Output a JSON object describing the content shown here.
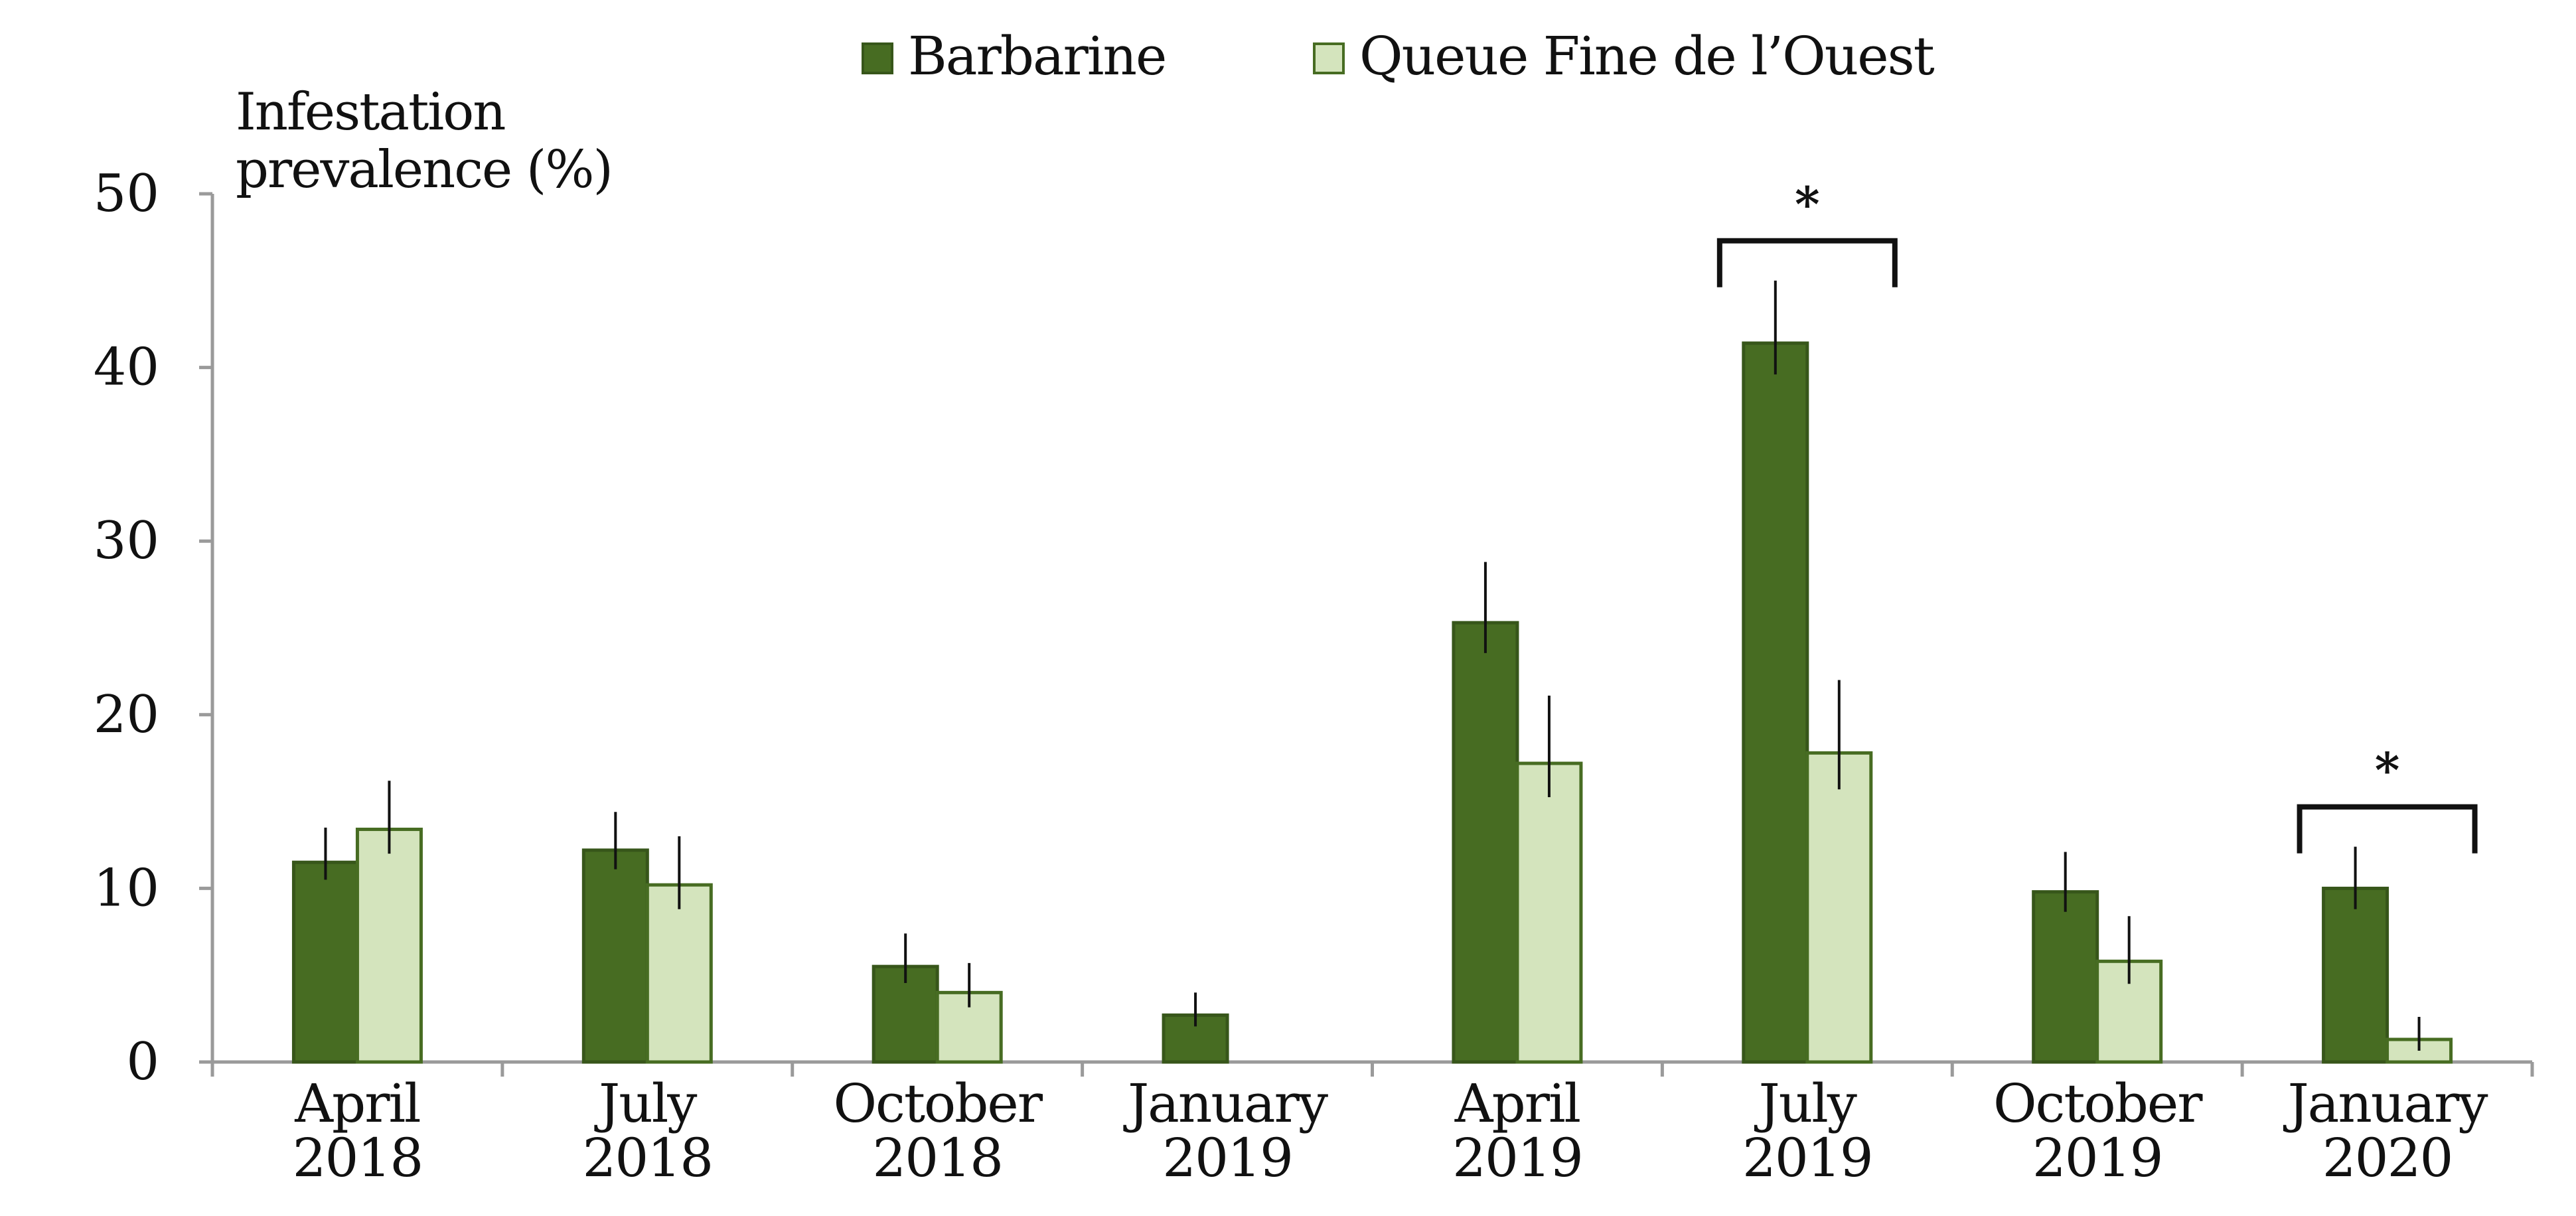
{
  "chart_data": {
    "type": "bar",
    "title": "",
    "xlabel": "",
    "ylabel_lines": [
      "Infestation",
      "prevalence (%)"
    ],
    "ylim": [
      0,
      50
    ],
    "yticks": [
      0,
      10,
      20,
      30,
      40,
      50
    ],
    "categories": [
      [
        "April",
        "2018"
      ],
      [
        "July",
        "2018"
      ],
      [
        "October",
        "2018"
      ],
      [
        "January",
        "2019"
      ],
      [
        "April",
        "2019"
      ],
      [
        "July",
        "2019"
      ],
      [
        "October",
        "2019"
      ],
      [
        "January",
        "2020"
      ]
    ],
    "series": [
      {
        "name": "Barbarine",
        "color": "#476c22",
        "edge": "#37561a",
        "values": [
          11.5,
          12.2,
          5.5,
          2.7,
          25.3,
          41.4,
          9.8,
          10.0
        ],
        "errors": [
          2.0,
          2.2,
          1.9,
          1.3,
          3.5,
          3.6,
          2.3,
          2.4
        ]
      },
      {
        "name": "Queue Fine de l’Ouest",
        "color": "#d4e4bd",
        "edge": "#476c22",
        "values": [
          13.4,
          10.2,
          4.0,
          0,
          17.2,
          17.8,
          5.8,
          1.3
        ],
        "errors": [
          2.8,
          2.8,
          1.7,
          0,
          3.9,
          4.2,
          2.6,
          1.3
        ]
      }
    ],
    "legend": "top-center",
    "grid": false,
    "annotations": [
      {
        "category_index": 5,
        "label": "*"
      },
      {
        "category_index": 7,
        "label": "*"
      }
    ]
  }
}
